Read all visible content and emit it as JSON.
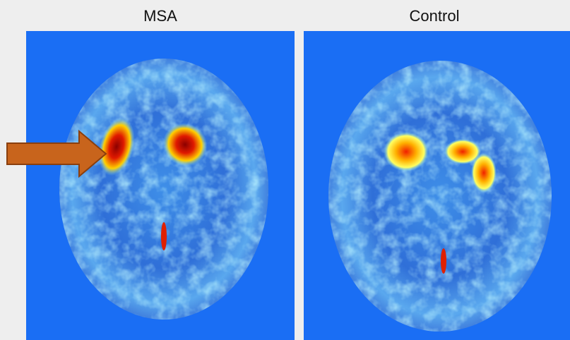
{
  "panels": [
    {
      "label": "MSA"
    },
    {
      "label": "Control"
    }
  ]
}
